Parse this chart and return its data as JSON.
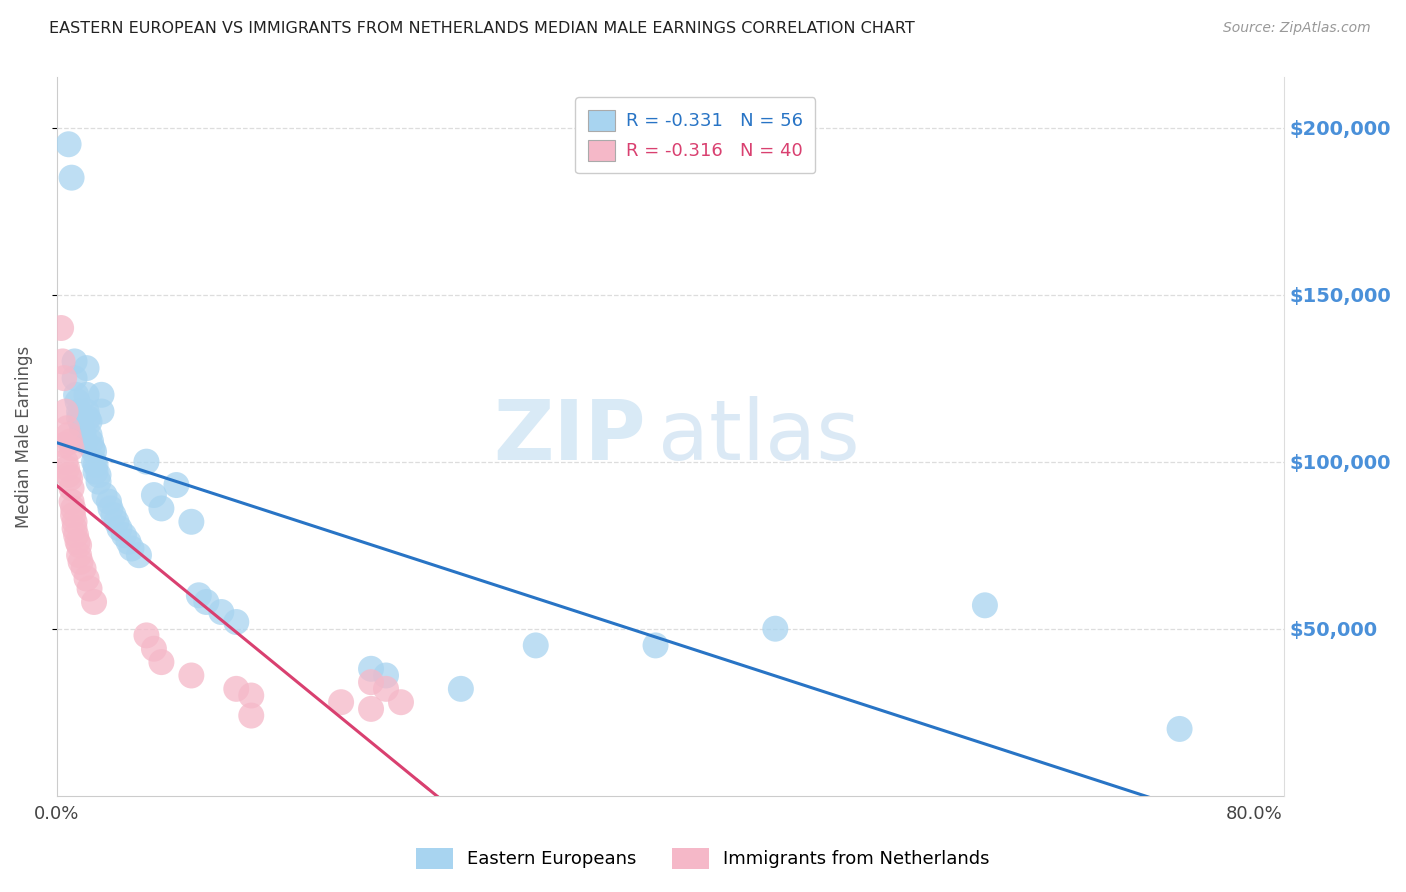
{
  "title": "EASTERN EUROPEAN VS IMMIGRANTS FROM NETHERLANDS MEDIAN MALE EARNINGS CORRELATION CHART",
  "source": "Source: ZipAtlas.com",
  "ylabel": "Median Male Earnings",
  "watermark_zip": "ZIP",
  "watermark_atlas": "atlas",
  "legend_blue_R": "-0.331",
  "legend_blue_N": "56",
  "legend_pink_R": "-0.316",
  "legend_pink_N": "40",
  "legend_blue_label": "Eastern Europeans",
  "legend_pink_label": "Immigrants from Netherlands",
  "blue_color": "#A8D4F0",
  "pink_color": "#F5B8C8",
  "trend_blue_color": "#2874C5",
  "trend_pink_color": "#D94070",
  "ytick_labels": [
    "$50,000",
    "$100,000",
    "$150,000",
    "$200,000"
  ],
  "ytick_values": [
    50000,
    100000,
    150000,
    200000
  ],
  "ylim": [
    0,
    215000
  ],
  "xlim": [
    0.0,
    0.82
  ],
  "blue_x": [
    0.008,
    0.01,
    0.012,
    0.012,
    0.013,
    0.014,
    0.015,
    0.015,
    0.016,
    0.017,
    0.018,
    0.018,
    0.019,
    0.02,
    0.02,
    0.02,
    0.021,
    0.022,
    0.022,
    0.023,
    0.024,
    0.025,
    0.025,
    0.026,
    0.026,
    0.028,
    0.028,
    0.03,
    0.03,
    0.032,
    0.035,
    0.036,
    0.038,
    0.04,
    0.042,
    0.045,
    0.048,
    0.05,
    0.055,
    0.06,
    0.065,
    0.07,
    0.08,
    0.09,
    0.095,
    0.1,
    0.11,
    0.12,
    0.21,
    0.22,
    0.27,
    0.32,
    0.4,
    0.48,
    0.62,
    0.75
  ],
  "blue_y": [
    195000,
    185000,
    130000,
    125000,
    120000,
    118000,
    115000,
    113000,
    112000,
    110000,
    108000,
    107000,
    106000,
    128000,
    120000,
    115000,
    113000,
    112000,
    108000,
    106000,
    104000,
    103000,
    100000,
    99000,
    97000,
    96000,
    94000,
    120000,
    115000,
    90000,
    88000,
    86000,
    84000,
    82000,
    80000,
    78000,
    76000,
    74000,
    72000,
    100000,
    90000,
    86000,
    93000,
    82000,
    60000,
    58000,
    55000,
    52000,
    38000,
    36000,
    32000,
    45000,
    45000,
    50000,
    57000,
    20000
  ],
  "pink_x": [
    0.003,
    0.004,
    0.005,
    0.005,
    0.006,
    0.006,
    0.007,
    0.007,
    0.008,
    0.008,
    0.009,
    0.009,
    0.01,
    0.01,
    0.01,
    0.011,
    0.011,
    0.012,
    0.012,
    0.013,
    0.014,
    0.015,
    0.015,
    0.016,
    0.018,
    0.02,
    0.022,
    0.025,
    0.06,
    0.065,
    0.07,
    0.09,
    0.12,
    0.13,
    0.13,
    0.19,
    0.21,
    0.21,
    0.22,
    0.23
  ],
  "pink_y": [
    140000,
    130000,
    125000,
    105000,
    115000,
    100000,
    110000,
    98000,
    108000,
    96000,
    106000,
    95000,
    104000,
    92000,
    88000,
    86000,
    84000,
    82000,
    80000,
    78000,
    76000,
    75000,
    72000,
    70000,
    68000,
    65000,
    62000,
    58000,
    48000,
    44000,
    40000,
    36000,
    32000,
    30000,
    24000,
    28000,
    34000,
    26000,
    32000,
    28000
  ],
  "background_color": "#FFFFFF",
  "grid_color": "#DDDDDD",
  "title_color": "#222222",
  "axis_label_color": "#555555",
  "ytick_color": "#4A90D9",
  "xtick_color": "#444444",
  "marker_size": 350
}
